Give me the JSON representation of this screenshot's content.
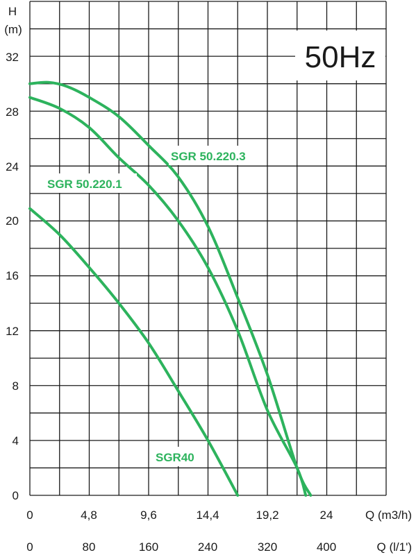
{
  "chart_data": {
    "type": "line",
    "frequency_label": "50Hz",
    "y_axis": {
      "label": "H",
      "unit": "(m)",
      "ticks": [
        "0",
        "4",
        "8",
        "12",
        "16",
        "20",
        "24",
        "28",
        "32"
      ],
      "ylim": [
        0,
        36
      ],
      "grid": true
    },
    "x_axis": {
      "label": "Q (m3/h)",
      "ticks": [
        "0",
        "4,8",
        "9,6",
        "14,4",
        "19,2",
        "24"
      ],
      "xlim": [
        0,
        28.8
      ],
      "grid": true
    },
    "x_axis_secondary": {
      "label": "Q (l/1')",
      "ticks": [
        "0",
        "80",
        "160",
        "240",
        "320",
        "400"
      ]
    },
    "series": [
      {
        "name": "SGR 50.220.3",
        "x": [
          0,
          1.5,
          3.0,
          4.8,
          7.2,
          9.6,
          12.0,
          14.4,
          16.8,
          19.2,
          21.6,
          22.7
        ],
        "y": [
          30.0,
          30.1,
          29.8,
          29.0,
          27.6,
          25.5,
          23.2,
          19.6,
          14.4,
          8.8,
          2.0,
          0
        ]
      },
      {
        "name": "SGR 50.220.1",
        "x": [
          0,
          2.4,
          4.8,
          7.2,
          9.6,
          12.0,
          14.4,
          16.8,
          19.2,
          21.6,
          22.3
        ],
        "y": [
          29.0,
          28.2,
          26.8,
          24.6,
          22.6,
          20.0,
          16.6,
          12.0,
          6.2,
          2.0,
          0
        ]
      },
      {
        "name": "SGR40",
        "x": [
          0,
          2.4,
          4.8,
          7.2,
          9.6,
          12.0,
          14.4,
          16.8
        ],
        "y": [
          20.9,
          19.0,
          16.6,
          14.0,
          11.1,
          7.6,
          4.0,
          0
        ]
      }
    ]
  }
}
